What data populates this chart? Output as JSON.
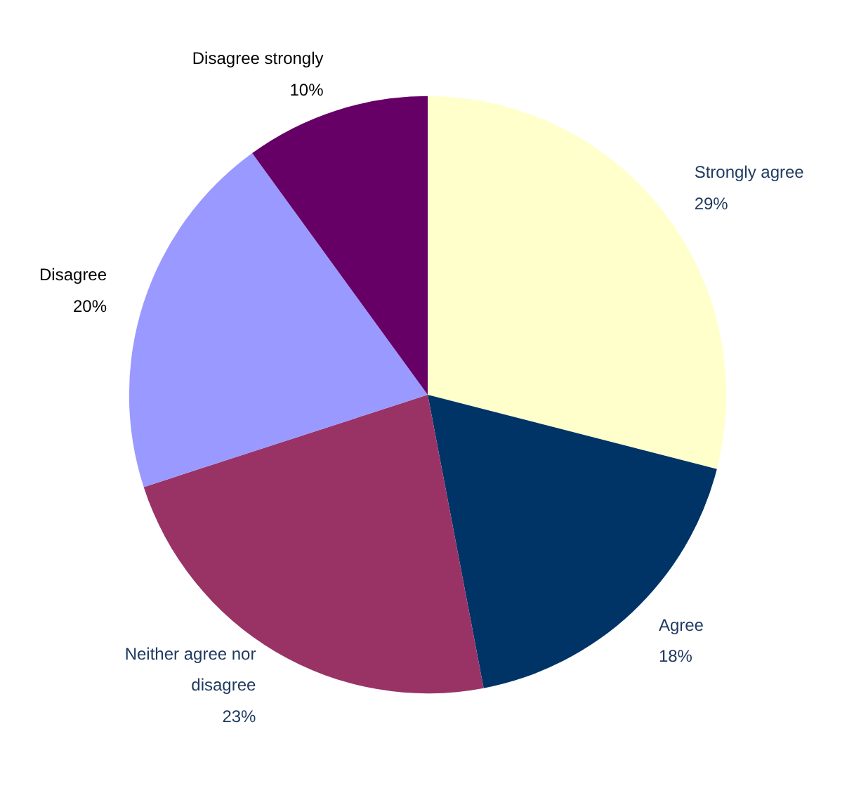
{
  "chart_data": {
    "type": "pie",
    "categories": [
      "Strongly agree",
      "Agree",
      "Neither agree nor disagree",
      "Disagree",
      "Disagree strongly"
    ],
    "values": [
      29,
      18,
      23,
      20,
      10
    ],
    "colors": [
      "#ffffcc",
      "#003366",
      "#993366",
      "#9999ff",
      "#660066"
    ],
    "value_labels": [
      "29%",
      "18%",
      "23%",
      "20%",
      "10%"
    ]
  }
}
